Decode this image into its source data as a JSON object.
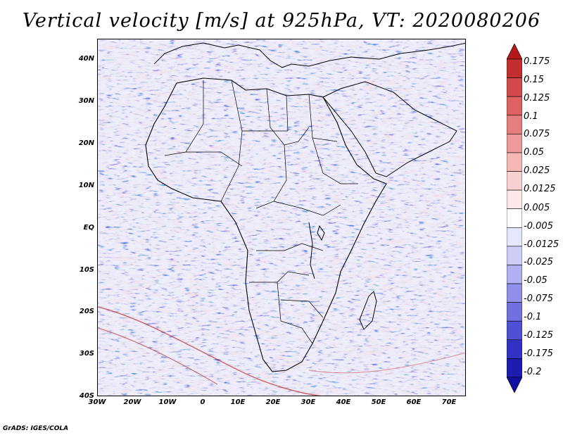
{
  "title": "Vertical velocity [m/s] at 925hPa, VT: 2020080206",
  "credit": "GrADS: IGES/COLA",
  "map": {
    "lat_labels": [
      "40N",
      "30N",
      "20N",
      "10N",
      "EQ",
      "10S",
      "20S",
      "30S",
      "40S"
    ],
    "lon_labels": [
      "30W",
      "20W",
      "10W",
      "0",
      "10E",
      "20E",
      "30E",
      "40E",
      "50E",
      "60E",
      "70E"
    ],
    "lat_range": [
      -40,
      45
    ],
    "lon_range": [
      -30,
      75
    ]
  },
  "colorbar": {
    "labels": [
      "0.175",
      "0.15",
      "0.125",
      "0.1",
      "0.075",
      "0.05",
      "0.025",
      "0.0125",
      "0.005",
      "-0.005",
      "-0.0125",
      "-0.025",
      "-0.05",
      "-0.075",
      "-0.1",
      "-0.125",
      "-0.175",
      "-0.2"
    ],
    "colors": [
      "#b51818",
      "#c52e2e",
      "#d34848",
      "#de6262",
      "#e77e7e",
      "#ef9a9a",
      "#f5b6b6",
      "#f9d0d0",
      "#fce8e8",
      "#ffffff",
      "#e6e6fc",
      "#cdcdf8",
      "#b0b0f2",
      "#9090ea",
      "#7070e0",
      "#5050d4",
      "#3232c4",
      "#1c1cb0",
      "#1010a0"
    ]
  }
}
